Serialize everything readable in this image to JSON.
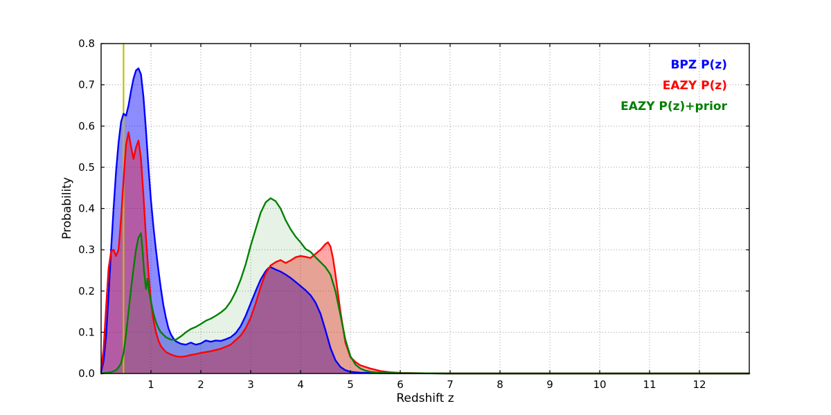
{
  "figure": {
    "xlabel": "Redshift z",
    "ylabel": "Probability",
    "legend": [
      {
        "label": "BPZ P(z)",
        "color": "#0000ff"
      },
      {
        "label": "EAZY P(z)",
        "color": "#ff0000"
      },
      {
        "label": "EAZY P(z)+prior",
        "color": "#008000"
      }
    ]
  },
  "chart_data": {
    "type": "area",
    "title": "",
    "xlabel": "Redshift z",
    "ylabel": "Probability",
    "xlim": [
      0,
      13
    ],
    "ylim": [
      0,
      0.8
    ],
    "grid": true,
    "legend_position": "upper right",
    "xticks": [
      1,
      2,
      3,
      4,
      5,
      6,
      7,
      8,
      9,
      10,
      11,
      12
    ],
    "xtick_labels": [
      "1",
      "2",
      "3",
      "4",
      "5",
      "6",
      "7",
      "8",
      "9",
      "10",
      "11",
      "12"
    ],
    "yticks": [
      0.0,
      0.1,
      0.2,
      0.3,
      0.4,
      0.5,
      0.6,
      0.7,
      0.8
    ],
    "ytick_labels": [
      "0.0",
      "0.1",
      "0.2",
      "0.3",
      "0.4",
      "0.5",
      "0.6",
      "0.7",
      "0.8"
    ],
    "vline": {
      "x": 0.45,
      "color": "#bfbf00"
    },
    "series": [
      {
        "name": "BPZ P(z)",
        "color": "#0000ff",
        "fill_opacity": 0.45,
        "points": [
          [
            0,
            0.004
          ],
          [
            0.05,
            0.03
          ],
          [
            0.1,
            0.09
          ],
          [
            0.15,
            0.19
          ],
          [
            0.2,
            0.3
          ],
          [
            0.25,
            0.4
          ],
          [
            0.3,
            0.49
          ],
          [
            0.35,
            0.56
          ],
          [
            0.4,
            0.61
          ],
          [
            0.45,
            0.63
          ],
          [
            0.5,
            0.625
          ],
          [
            0.55,
            0.65
          ],
          [
            0.6,
            0.685
          ],
          [
            0.65,
            0.715
          ],
          [
            0.7,
            0.735
          ],
          [
            0.75,
            0.74
          ],
          [
            0.8,
            0.725
          ],
          [
            0.85,
            0.67
          ],
          [
            0.9,
            0.59
          ],
          [
            0.95,
            0.5
          ],
          [
            1.0,
            0.42
          ],
          [
            1.05,
            0.355
          ],
          [
            1.1,
            0.3
          ],
          [
            1.15,
            0.25
          ],
          [
            1.2,
            0.205
          ],
          [
            1.25,
            0.165
          ],
          [
            1.3,
            0.135
          ],
          [
            1.35,
            0.11
          ],
          [
            1.4,
            0.095
          ],
          [
            1.45,
            0.085
          ],
          [
            1.5,
            0.078
          ],
          [
            1.6,
            0.072
          ],
          [
            1.7,
            0.07
          ],
          [
            1.8,
            0.075
          ],
          [
            1.9,
            0.07
          ],
          [
            2.0,
            0.073
          ],
          [
            2.1,
            0.08
          ],
          [
            2.2,
            0.077
          ],
          [
            2.3,
            0.08
          ],
          [
            2.4,
            0.079
          ],
          [
            2.5,
            0.083
          ],
          [
            2.6,
            0.088
          ],
          [
            2.7,
            0.098
          ],
          [
            2.8,
            0.115
          ],
          [
            2.9,
            0.14
          ],
          [
            3.0,
            0.17
          ],
          [
            3.1,
            0.2
          ],
          [
            3.2,
            0.228
          ],
          [
            3.3,
            0.248
          ],
          [
            3.35,
            0.255
          ],
          [
            3.4,
            0.258
          ],
          [
            3.5,
            0.252
          ],
          [
            3.6,
            0.247
          ],
          [
            3.7,
            0.24
          ],
          [
            3.8,
            0.232
          ],
          [
            3.9,
            0.222
          ],
          [
            4.0,
            0.212
          ],
          [
            4.1,
            0.202
          ],
          [
            4.2,
            0.19
          ],
          [
            4.3,
            0.172
          ],
          [
            4.4,
            0.145
          ],
          [
            4.5,
            0.105
          ],
          [
            4.6,
            0.062
          ],
          [
            4.7,
            0.032
          ],
          [
            4.8,
            0.016
          ],
          [
            4.9,
            0.008
          ],
          [
            5.0,
            0.004
          ],
          [
            5.2,
            0.002
          ],
          [
            5.5,
            0.001
          ],
          [
            6.0,
            0.0005
          ],
          [
            7.0,
            0
          ],
          [
            13,
            0
          ]
        ]
      },
      {
        "name": "EAZY P(z)",
        "color": "#ff0000",
        "fill_opacity": 0.35,
        "points": [
          [
            0,
            0.01
          ],
          [
            0.05,
            0.06
          ],
          [
            0.1,
            0.16
          ],
          [
            0.15,
            0.255
          ],
          [
            0.2,
            0.295
          ],
          [
            0.25,
            0.3
          ],
          [
            0.3,
            0.285
          ],
          [
            0.35,
            0.3
          ],
          [
            0.4,
            0.375
          ],
          [
            0.45,
            0.47
          ],
          [
            0.5,
            0.555
          ],
          [
            0.55,
            0.585
          ],
          [
            0.6,
            0.55
          ],
          [
            0.65,
            0.52
          ],
          [
            0.7,
            0.548
          ],
          [
            0.75,
            0.565
          ],
          [
            0.8,
            0.52
          ],
          [
            0.85,
            0.43
          ],
          [
            0.9,
            0.33
          ],
          [
            0.95,
            0.245
          ],
          [
            1.0,
            0.175
          ],
          [
            1.05,
            0.13
          ],
          [
            1.1,
            0.1
          ],
          [
            1.15,
            0.08
          ],
          [
            1.2,
            0.066
          ],
          [
            1.3,
            0.052
          ],
          [
            1.4,
            0.046
          ],
          [
            1.5,
            0.042
          ],
          [
            1.6,
            0.04
          ],
          [
            1.7,
            0.042
          ],
          [
            1.8,
            0.045
          ],
          [
            1.9,
            0.047
          ],
          [
            2.0,
            0.05
          ],
          [
            2.2,
            0.054
          ],
          [
            2.4,
            0.06
          ],
          [
            2.6,
            0.07
          ],
          [
            2.8,
            0.092
          ],
          [
            2.9,
            0.11
          ],
          [
            3.0,
            0.135
          ],
          [
            3.1,
            0.17
          ],
          [
            3.2,
            0.21
          ],
          [
            3.3,
            0.243
          ],
          [
            3.4,
            0.262
          ],
          [
            3.5,
            0.27
          ],
          [
            3.6,
            0.275
          ],
          [
            3.7,
            0.268
          ],
          [
            3.8,
            0.274
          ],
          [
            3.9,
            0.282
          ],
          [
            4.0,
            0.285
          ],
          [
            4.1,
            0.283
          ],
          [
            4.2,
            0.28
          ],
          [
            4.3,
            0.29
          ],
          [
            4.4,
            0.3
          ],
          [
            4.5,
            0.314
          ],
          [
            4.55,
            0.318
          ],
          [
            4.6,
            0.308
          ],
          [
            4.65,
            0.28
          ],
          [
            4.7,
            0.24
          ],
          [
            4.8,
            0.15
          ],
          [
            4.9,
            0.075
          ],
          [
            5.0,
            0.04
          ],
          [
            5.1,
            0.028
          ],
          [
            5.2,
            0.02
          ],
          [
            5.3,
            0.016
          ],
          [
            5.4,
            0.012
          ],
          [
            5.5,
            0.009
          ],
          [
            5.6,
            0.006
          ],
          [
            5.8,
            0.003
          ],
          [
            6.0,
            0.0015
          ],
          [
            6.5,
            0.0005
          ],
          [
            7.0,
            0
          ],
          [
            13,
            0
          ]
        ]
      },
      {
        "name": "EAZY P(z)+prior",
        "color": "#008000",
        "fill_opacity": 0.1,
        "points": [
          [
            0,
            0
          ],
          [
            0.2,
            0.003
          ],
          [
            0.3,
            0.008
          ],
          [
            0.35,
            0.015
          ],
          [
            0.4,
            0.025
          ],
          [
            0.45,
            0.05
          ],
          [
            0.5,
            0.095
          ],
          [
            0.55,
            0.15
          ],
          [
            0.6,
            0.205
          ],
          [
            0.65,
            0.255
          ],
          [
            0.7,
            0.3
          ],
          [
            0.75,
            0.33
          ],
          [
            0.8,
            0.34
          ],
          [
            0.83,
            0.3
          ],
          [
            0.86,
            0.25
          ],
          [
            0.9,
            0.205
          ],
          [
            0.93,
            0.23
          ],
          [
            0.96,
            0.2
          ],
          [
            1.0,
            0.175
          ],
          [
            1.05,
            0.145
          ],
          [
            1.1,
            0.125
          ],
          [
            1.15,
            0.11
          ],
          [
            1.2,
            0.1
          ],
          [
            1.3,
            0.088
          ],
          [
            1.4,
            0.082
          ],
          [
            1.5,
            0.082
          ],
          [
            1.6,
            0.09
          ],
          [
            1.7,
            0.1
          ],
          [
            1.8,
            0.108
          ],
          [
            1.9,
            0.113
          ],
          [
            2.0,
            0.12
          ],
          [
            2.1,
            0.128
          ],
          [
            2.2,
            0.133
          ],
          [
            2.3,
            0.14
          ],
          [
            2.4,
            0.148
          ],
          [
            2.5,
            0.158
          ],
          [
            2.6,
            0.175
          ],
          [
            2.7,
            0.198
          ],
          [
            2.8,
            0.228
          ],
          [
            2.9,
            0.265
          ],
          [
            3.0,
            0.31
          ],
          [
            3.1,
            0.35
          ],
          [
            3.2,
            0.39
          ],
          [
            3.3,
            0.415
          ],
          [
            3.4,
            0.425
          ],
          [
            3.5,
            0.418
          ],
          [
            3.6,
            0.4
          ],
          [
            3.7,
            0.372
          ],
          [
            3.8,
            0.35
          ],
          [
            3.9,
            0.332
          ],
          [
            4.0,
            0.318
          ],
          [
            4.1,
            0.302
          ],
          [
            4.2,
            0.295
          ],
          [
            4.3,
            0.282
          ],
          [
            4.4,
            0.27
          ],
          [
            4.5,
            0.258
          ],
          [
            4.6,
            0.24
          ],
          [
            4.7,
            0.2
          ],
          [
            4.8,
            0.142
          ],
          [
            4.9,
            0.082
          ],
          [
            5.0,
            0.042
          ],
          [
            5.1,
            0.022
          ],
          [
            5.2,
            0.012
          ],
          [
            5.3,
            0.007
          ],
          [
            5.4,
            0.004
          ],
          [
            5.6,
            0.002
          ],
          [
            6.0,
            0.001
          ],
          [
            7.0,
            0
          ],
          [
            13,
            0
          ]
        ]
      }
    ]
  }
}
